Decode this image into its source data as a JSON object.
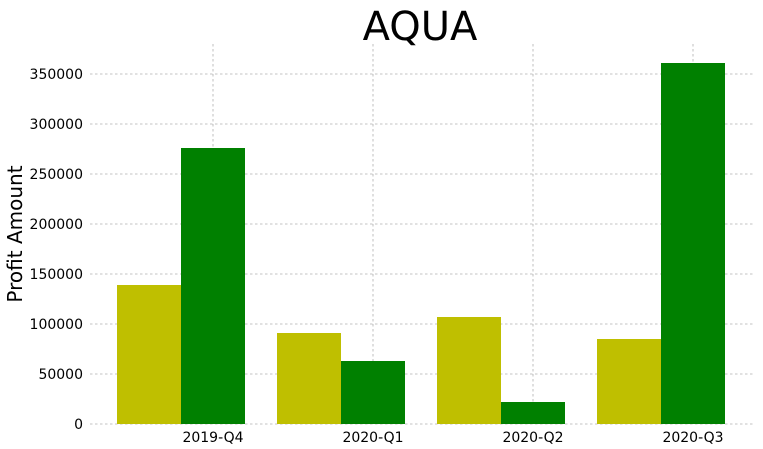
{
  "colors": {
    "series_a": "#bfbf00",
    "series_b": "#008000",
    "grid": "#b0b0b0"
  },
  "chart_data": {
    "type": "bar",
    "title": "AQUA",
    "xlabel": "",
    "ylabel": "Profit Amount",
    "categories": [
      "2019-Q4",
      "2020-Q1",
      "2020-Q2",
      "2020-Q3"
    ],
    "series": [
      {
        "values": [
          139000,
          91000,
          107000,
          85000
        ],
        "color": "#bfbf00"
      },
      {
        "values": [
          276000,
          63000,
          22000,
          361000
        ],
        "color": "#008000"
      }
    ],
    "ylim": [
      0,
      380000
    ],
    "yticks": [
      0,
      50000,
      100000,
      150000,
      200000,
      250000,
      300000,
      350000
    ],
    "ytick_labels": [
      "0",
      "50000",
      "100000",
      "150000",
      "200000",
      "250000",
      "300000",
      "350000"
    ],
    "grid": true,
    "legend": "none"
  }
}
